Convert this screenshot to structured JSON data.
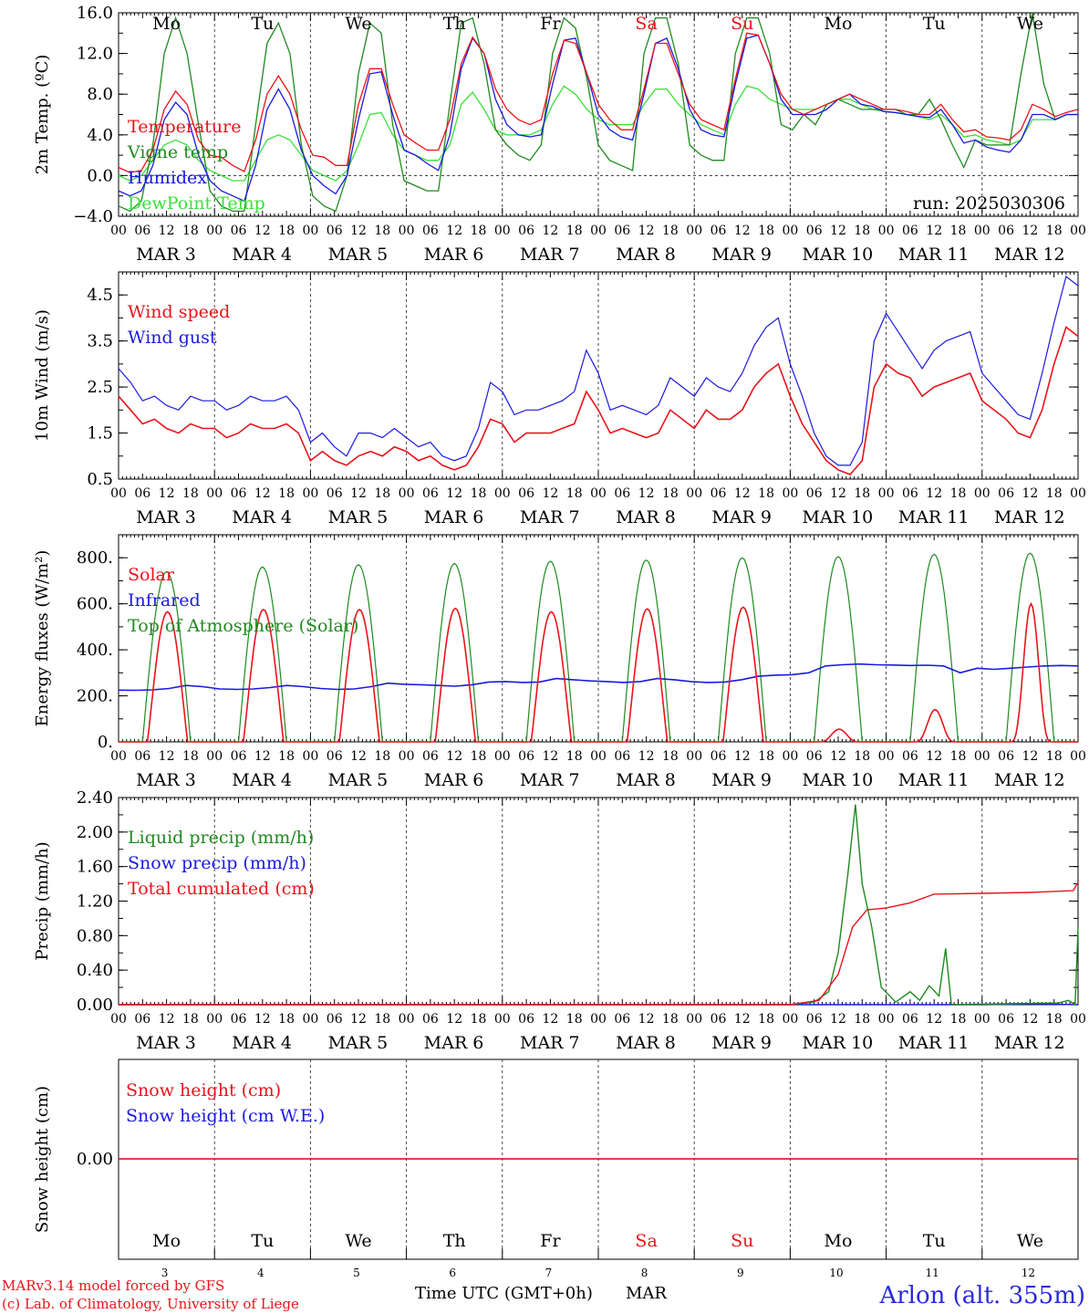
{
  "chart_data": [
    {
      "type": "line",
      "ylabel": "2m Temp. (ºC)",
      "ylim": [
        -4,
        16
      ],
      "yticks": [
        "16.0",
        "12.0",
        "8.0",
        "4.0",
        "0.0",
        "−4.0"
      ],
      "ytick_values": [
        16,
        12,
        8,
        4,
        0,
        -4
      ],
      "grid": "dashed vertical at day boundaries",
      "legend": [
        "Temperature",
        "Vigne temp",
        "Humidex",
        "DewPoint Temp"
      ],
      "annotation": "run: 2025030306",
      "day_labels_top": [
        "Mo",
        "Tu",
        "We",
        "Th",
        "Fr",
        "Sa",
        "Su",
        "Mo",
        "Tu",
        "We"
      ],
      "series": [
        {
          "name": "Temperature",
          "color": "#e8141a",
          "values": [
            0.8,
            0.3,
            0.5,
            2.5,
            6.5,
            8.3,
            7.0,
            3.5,
            2.0,
            1.8,
            1.0,
            0.4,
            3.5,
            8.0,
            9.8,
            8.0,
            4.5,
            2.0,
            1.8,
            1.0,
            1.0,
            7.0,
            10.5,
            10.5,
            7.0,
            4.0,
            3.2,
            2.5,
            2.5,
            5.5,
            11.0,
            13.6,
            12.0,
            8.5,
            6.5,
            5.5,
            5.0,
            5.5,
            10.0,
            13.3,
            13.0,
            10.0,
            7.0,
            5.5,
            4.5,
            4.5,
            8.5,
            13.0,
            13.0,
            10.0,
            7.0,
            5.5,
            5.0,
            4.5,
            9.5,
            14.0,
            13.8,
            11.0,
            8.0,
            6.5,
            6.0,
            6.5,
            7.0,
            7.5,
            8.0,
            7.5,
            7.0,
            6.5,
            6.5,
            6.3,
            6.0,
            6.0,
            7.0,
            5.5,
            4.3,
            4.5,
            3.8,
            3.7,
            3.5,
            4.5,
            7.0,
            6.5,
            5.8,
            6.2,
            6.5
          ]
        },
        {
          "name": "Vigne temp",
          "color": "#1f8a1f",
          "values": [
            -3.0,
            -3.5,
            -2.5,
            3.0,
            12.0,
            15.5,
            12.0,
            5.0,
            -1.5,
            -3.0,
            -3.5,
            -3.5,
            5.0,
            13.0,
            15.0,
            12.0,
            3.0,
            -2.0,
            -3.0,
            -3.5,
            0.0,
            10.0,
            15.0,
            14.0,
            5.0,
            -0.5,
            -1.0,
            -1.5,
            -1.5,
            7.0,
            15.0,
            15.5,
            11.0,
            4.5,
            3.0,
            2.0,
            1.5,
            3.0,
            12.0,
            15.5,
            14.5,
            9.5,
            3.0,
            1.5,
            1.0,
            0.5,
            12.0,
            15.5,
            15.5,
            11.0,
            3.0,
            2.0,
            1.5,
            1.5,
            12.0,
            15.5,
            15.5,
            12.0,
            5.0,
            4.5,
            6.0,
            5.0,
            7.0,
            7.5,
            7.0,
            6.5,
            6.5,
            6.5,
            6.5,
            6.0,
            6.0,
            7.5,
            5.5,
            3.0,
            0.8,
            3.5,
            3.0,
            3.0,
            3.0,
            10.0,
            16.0,
            9.0,
            5.5,
            6.0,
            6.0
          ]
        },
        {
          "name": "Humidex",
          "color": "#1a1ae0",
          "values": [
            -1.5,
            -2.0,
            -1.5,
            1.0,
            5.5,
            7.2,
            6.0,
            2.0,
            -0.5,
            -1.5,
            -2.0,
            -2.5,
            1.0,
            6.5,
            8.5,
            6.5,
            2.5,
            0.0,
            -1.0,
            -1.8,
            0.0,
            5.5,
            10.0,
            10.2,
            6.0,
            2.5,
            2.0,
            1.2,
            0.5,
            4.0,
            10.5,
            13.5,
            12.0,
            7.5,
            5.0,
            4.0,
            3.8,
            4.0,
            9.0,
            13.3,
            13.5,
            10.0,
            6.0,
            4.5,
            3.8,
            3.5,
            8.0,
            13.0,
            13.5,
            10.5,
            6.5,
            4.5,
            4.0,
            3.8,
            9.0,
            13.5,
            13.8,
            11.0,
            7.5,
            6.0,
            6.0,
            6.0,
            6.5,
            7.5,
            8.0,
            7.0,
            6.8,
            6.3,
            6.2,
            6.0,
            5.8,
            5.7,
            6.5,
            5.0,
            3.2,
            3.5,
            2.8,
            2.5,
            2.3,
            3.5,
            6.0,
            6.0,
            5.5,
            6.0,
            6.0
          ]
        },
        {
          "name": "DewPoint Temp",
          "color": "#3ae03a",
          "values": [
            0.0,
            -0.5,
            0.0,
            1.5,
            3.0,
            3.5,
            3.0,
            1.5,
            0.5,
            0.0,
            -0.5,
            -0.5,
            1.5,
            3.5,
            4.0,
            3.5,
            2.0,
            0.5,
            0.0,
            -0.5,
            0.5,
            3.0,
            6.0,
            6.2,
            4.0,
            2.5,
            2.0,
            1.5,
            1.5,
            3.0,
            7.0,
            8.2,
            6.5,
            4.5,
            4.0,
            4.0,
            4.0,
            4.5,
            7.0,
            8.8,
            8.0,
            6.5,
            5.5,
            5.0,
            5.0,
            5.0,
            7.0,
            8.5,
            8.5,
            7.0,
            6.0,
            5.0,
            4.5,
            4.0,
            7.0,
            8.8,
            8.5,
            7.5,
            7.0,
            6.5,
            6.5,
            6.5,
            7.0,
            7.5,
            7.5,
            7.0,
            6.5,
            6.3,
            6.2,
            6.0,
            5.8,
            5.5,
            6.0,
            5.0,
            3.8,
            4.0,
            3.5,
            3.3,
            3.0,
            3.5,
            5.5,
            5.5,
            5.5,
            6.0,
            6.0
          ]
        }
      ]
    },
    {
      "type": "line",
      "ylabel": "10m Wind (m/s)",
      "ylim": [
        0.5,
        5.0
      ],
      "yticks": [
        "4.5",
        "3.5",
        "2.5",
        "1.5",
        "0.5"
      ],
      "ytick_values": [
        4.5,
        3.5,
        2.5,
        1.5,
        0.5
      ],
      "grid": "dashed vertical at day boundaries",
      "legend": [
        "Wind speed",
        "Wind gust"
      ],
      "series": [
        {
          "name": "Wind speed",
          "color": "#e8141a",
          "values": [
            2.3,
            2.0,
            1.7,
            1.8,
            1.6,
            1.5,
            1.7,
            1.6,
            1.6,
            1.4,
            1.5,
            1.7,
            1.6,
            1.6,
            1.7,
            1.5,
            0.9,
            1.1,
            0.9,
            0.8,
            1.0,
            1.1,
            1.0,
            1.2,
            1.1,
            0.9,
            1.0,
            0.8,
            0.7,
            0.8,
            1.2,
            1.8,
            1.7,
            1.3,
            1.5,
            1.5,
            1.5,
            1.6,
            1.7,
            2.4,
            2.0,
            1.5,
            1.6,
            1.5,
            1.4,
            1.5,
            2.0,
            1.8,
            1.6,
            2.0,
            1.8,
            1.8,
            2.0,
            2.5,
            2.8,
            3.0,
            2.3,
            1.7,
            1.3,
            0.9,
            0.7,
            0.6,
            0.9,
            2.5,
            3.0,
            2.8,
            2.7,
            2.3,
            2.5,
            2.6,
            2.7,
            2.8,
            2.2,
            2.0,
            1.8,
            1.5,
            1.4,
            2.0,
            3.0,
            3.8,
            3.6
          ]
        },
        {
          "name": "Wind gust",
          "color": "#1a1ae0",
          "values": [
            2.9,
            2.6,
            2.2,
            2.3,
            2.1,
            2.0,
            2.3,
            2.2,
            2.2,
            2.0,
            2.1,
            2.3,
            2.2,
            2.2,
            2.3,
            2.0,
            1.3,
            1.5,
            1.2,
            1.0,
            1.5,
            1.5,
            1.4,
            1.6,
            1.4,
            1.2,
            1.3,
            1.0,
            0.9,
            1.0,
            1.6,
            2.6,
            2.4,
            1.9,
            2.0,
            2.0,
            2.1,
            2.2,
            2.4,
            3.3,
            2.8,
            2.0,
            2.1,
            2.0,
            1.9,
            2.1,
            2.7,
            2.5,
            2.3,
            2.7,
            2.5,
            2.4,
            2.8,
            3.4,
            3.8,
            4.0,
            3.0,
            2.3,
            1.5,
            1.0,
            0.8,
            0.8,
            1.3,
            3.5,
            4.1,
            3.7,
            3.3,
            2.9,
            3.3,
            3.5,
            3.6,
            3.7,
            2.8,
            2.5,
            2.2,
            1.9,
            1.8,
            2.8,
            3.9,
            4.9,
            4.7
          ]
        }
      ]
    },
    {
      "type": "line",
      "ylabel": "Energy fluxes (W/m²)",
      "ylim": [
        0,
        900
      ],
      "yticks": [
        "800.",
        "600.",
        "400.",
        "200.",
        "0."
      ],
      "ytick_values": [
        800,
        600,
        400,
        200,
        0
      ],
      "grid": "dashed vertical at day boundaries",
      "legend": [
        "Solar",
        "Infrared",
        "Top of Atmosphere (Solar)"
      ],
      "series": [
        {
          "name": "Solar",
          "color": "#e8141a",
          "daily_peak": [
            565,
            575,
            575,
            580,
            565,
            578,
            585,
            55,
            140,
            600
          ]
        },
        {
          "name": "Infrared",
          "color": "#1a1ae0",
          "values": [
            225,
            224,
            226,
            232,
            245,
            240,
            230,
            228,
            230,
            236,
            245,
            240,
            232,
            228,
            230,
            240,
            255,
            250,
            248,
            245,
            242,
            248,
            260,
            262,
            258,
            260,
            275,
            270,
            265,
            262,
            258,
            262,
            275,
            270,
            262,
            258,
            260,
            270,
            285,
            290,
            292,
            300,
            330,
            335,
            338,
            335,
            334,
            332,
            333,
            330,
            300,
            320,
            315,
            320,
            325,
            330,
            332,
            330
          ]
        },
        {
          "name": "Top of Atmosphere (Solar)",
          "color": "#1f8a1f",
          "daily_peak": [
            740,
            760,
            770,
            775,
            785,
            790,
            800,
            805,
            815,
            820
          ]
        }
      ]
    },
    {
      "type": "line",
      "ylabel": "Precip (mm/h)",
      "ylim": [
        0,
        2.4
      ],
      "yticks": [
        "2.40",
        "2.00",
        "1.60",
        "1.20",
        "0.80",
        "0.40",
        "0.00"
      ],
      "ytick_values": [
        2.4,
        2.0,
        1.6,
        1.2,
        0.8,
        0.4,
        0.0
      ],
      "grid": "dashed vertical at day boundaries",
      "legend": [
        "Liquid precip (mm/h)",
        "Snow precip (mm/h)",
        "Total cumulated (cm)"
      ],
      "series": [
        {
          "name": "Liquid precip (mm/h)",
          "color": "#1f8a1f",
          "points": [
            [
              7.0,
              0.0
            ],
            [
              7.25,
              0.03
            ],
            [
              7.4,
              0.15
            ],
            [
              7.5,
              0.6
            ],
            [
              7.6,
              1.5
            ],
            [
              7.68,
              2.32
            ],
            [
              7.75,
              1.4
            ],
            [
              7.85,
              0.9
            ],
            [
              7.95,
              0.2
            ],
            [
              8.1,
              0.03
            ],
            [
              8.25,
              0.15
            ],
            [
              8.35,
              0.05
            ],
            [
              8.45,
              0.22
            ],
            [
              8.55,
              0.1
            ],
            [
              8.62,
              0.65
            ],
            [
              8.68,
              0.0
            ],
            [
              9.8,
              0.02
            ],
            [
              9.9,
              0.05
            ],
            [
              9.97,
              0.0
            ],
            [
              10.0,
              0.9
            ]
          ]
        },
        {
          "name": "Snow precip (mm/h)",
          "color": "#1a1ae0",
          "points": [
            [
              9.0,
              0.0
            ],
            [
              9.5,
              0.01
            ],
            [
              10.0,
              0.0
            ]
          ]
        },
        {
          "name": "Total cumulated (cm)",
          "color": "#e8141a",
          "points": [
            [
              7.0,
              0.0
            ],
            [
              7.3,
              0.05
            ],
            [
              7.5,
              0.35
            ],
            [
              7.65,
              0.9
            ],
            [
              7.8,
              1.1
            ],
            [
              8.0,
              1.12
            ],
            [
              8.25,
              1.18
            ],
            [
              8.5,
              1.28
            ],
            [
              9.0,
              1.29
            ],
            [
              9.5,
              1.3
            ],
            [
              9.95,
              1.32
            ],
            [
              10.0,
              1.42
            ]
          ]
        }
      ]
    },
    {
      "type": "line",
      "ylabel": "Snow height (cm)",
      "yticks": [
        "0.00"
      ],
      "legend": [
        "Snow height (cm)",
        "Snow height (cm W.E.)"
      ],
      "series": [
        {
          "name": "Snow height (cm)",
          "color": "#e8141a",
          "constant": 0.0
        },
        {
          "name": "Snow height (cm W.E.)",
          "color": "#1a1ae0",
          "constant": 0.0
        }
      ],
      "day_labels_bottom": [
        "Mo",
        "Tu",
        "We",
        "Th",
        "Fr",
        "Sa",
        "Su",
        "Mo",
        "Tu",
        "We"
      ],
      "day_numbers": [
        "3",
        "4",
        "5",
        "6",
        "7",
        "8",
        "9",
        "10",
        "11",
        "12"
      ]
    }
  ],
  "days": {
    "names": [
      "Mo",
      "Tu",
      "We",
      "Th",
      "Fr",
      "Sa",
      "Su",
      "Mo",
      "Tu",
      "We"
    ],
    "weekend_color": "#e8141a",
    "dates": [
      "MAR  3",
      "MAR  4",
      "MAR  5",
      "MAR  6",
      "MAR  7",
      "MAR  8",
      "MAR  9",
      "MAR 10",
      "MAR 11",
      "MAR 12"
    ],
    "hours": [
      "00",
      "06",
      "12",
      "18"
    ],
    "end_hour": "00"
  },
  "footer": {
    "credit_line1": "MARv3.14 model forced by GFS",
    "credit_line2": "(c) Lab. of Climatology, University of Liege",
    "xlabel": "Time UTC (GMT+0h)",
    "month": "MAR",
    "station": "Arlon (alt. 355m)"
  }
}
